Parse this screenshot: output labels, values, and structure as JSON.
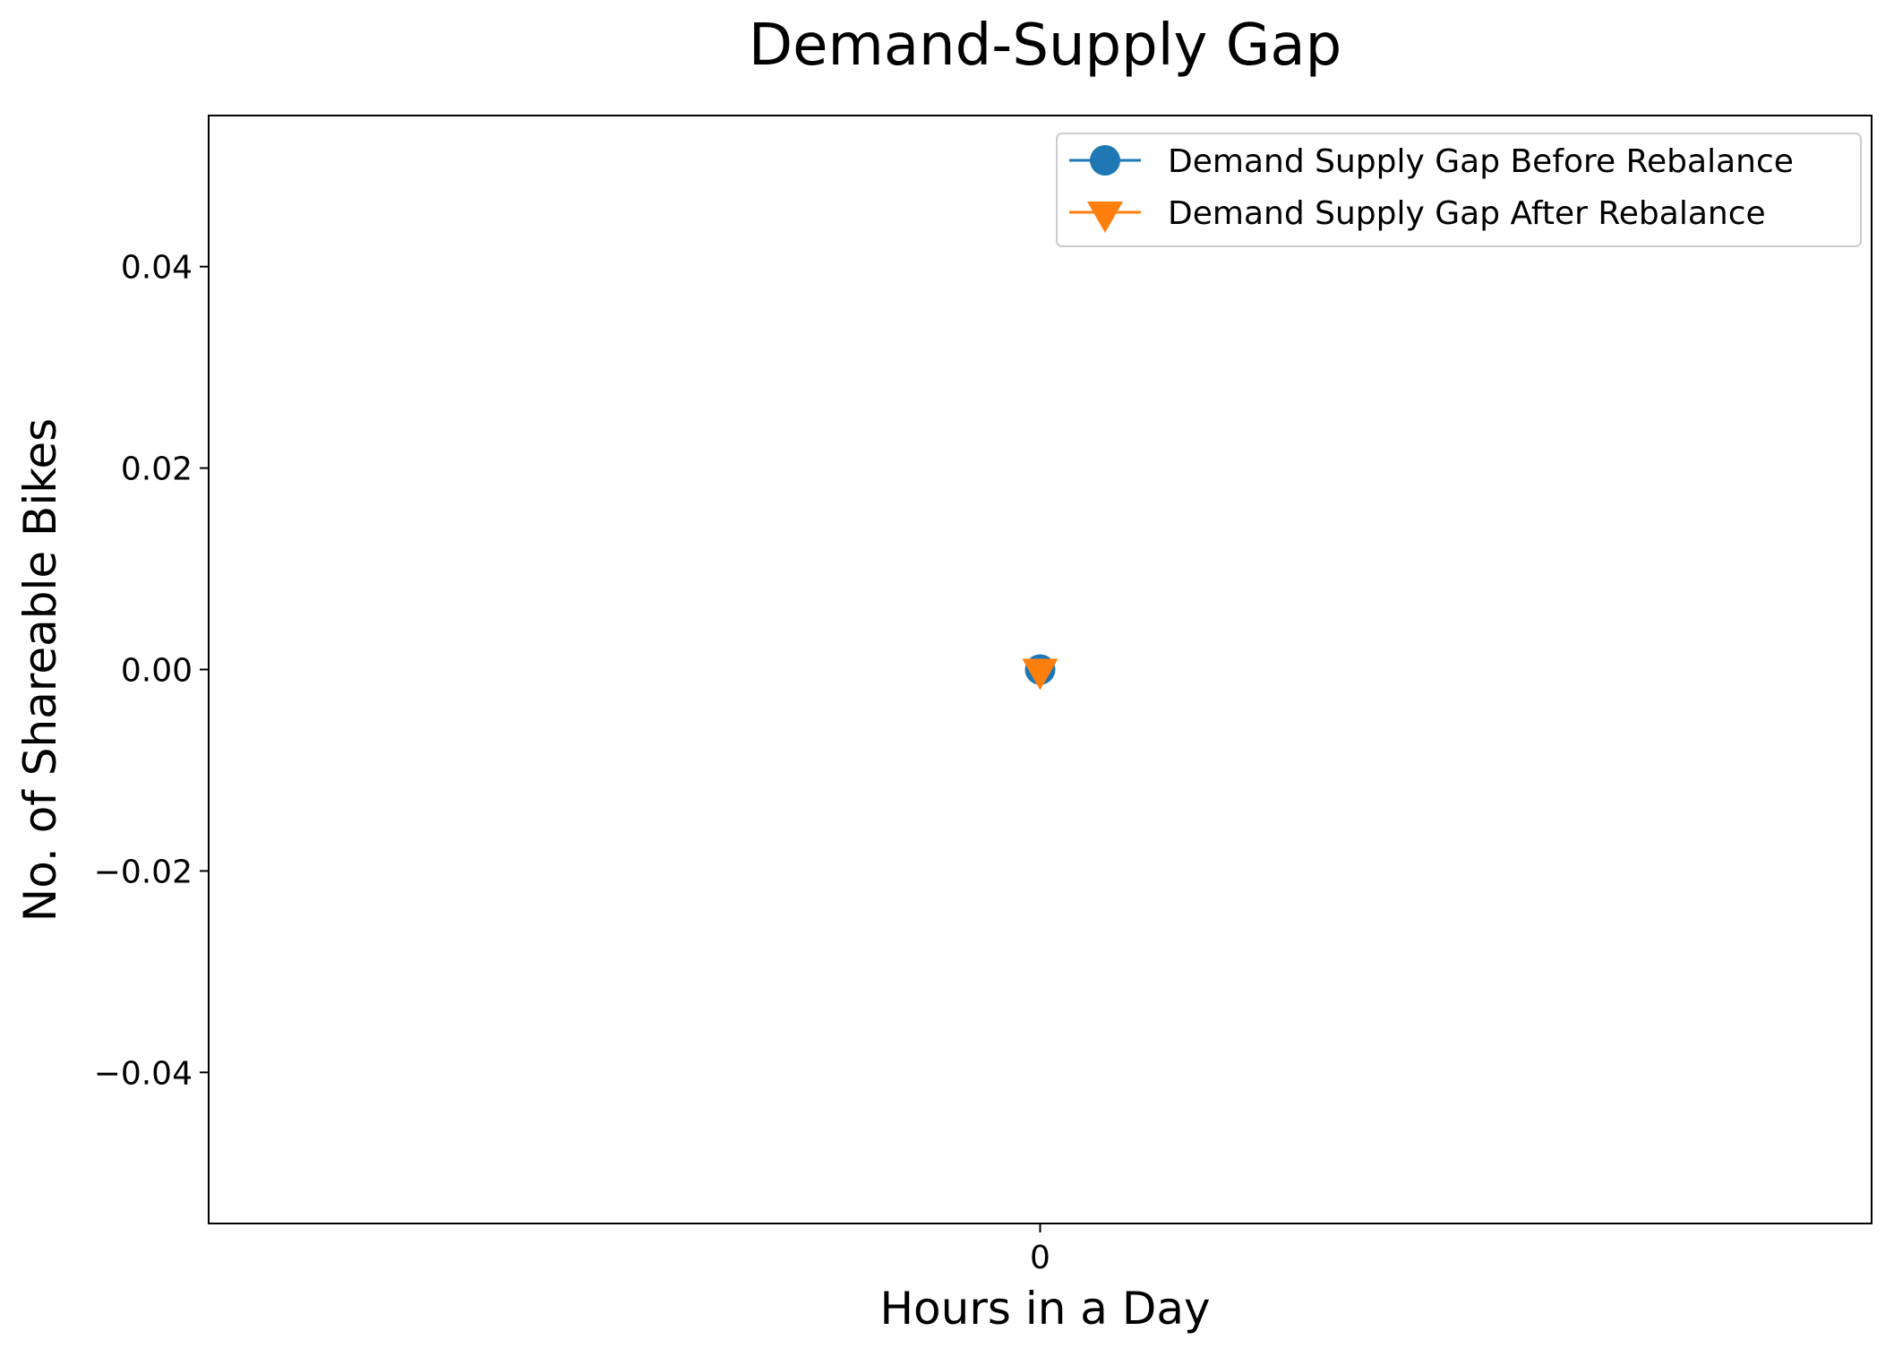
{
  "chart_data": {
    "type": "line",
    "title": "Demand-Supply Gap",
    "xlabel": "Hours in a Day",
    "ylabel": "No. of Shareable Bikes",
    "x": [
      0
    ],
    "x_tick_labels": [
      "0"
    ],
    "xlim": [
      -0.055,
      0.055
    ],
    "ylim": [
      -0.055,
      0.055
    ],
    "y_ticks": [
      0.04,
      0.02,
      0.0,
      -0.02,
      -0.04
    ],
    "y_tick_labels": [
      "0.04",
      "0.02",
      "0.00",
      "−0.02",
      "−0.04"
    ],
    "grid": false,
    "legend_position": "upper right",
    "series": [
      {
        "name": "Demand Supply Gap Before Rebalance",
        "values": [
          0
        ],
        "color": "#1f77b4",
        "marker": "circle"
      },
      {
        "name": "Demand Supply Gap After Rebalance",
        "values": [
          0
        ],
        "color": "#ff7f0e",
        "marker": "triangle-down"
      }
    ]
  }
}
